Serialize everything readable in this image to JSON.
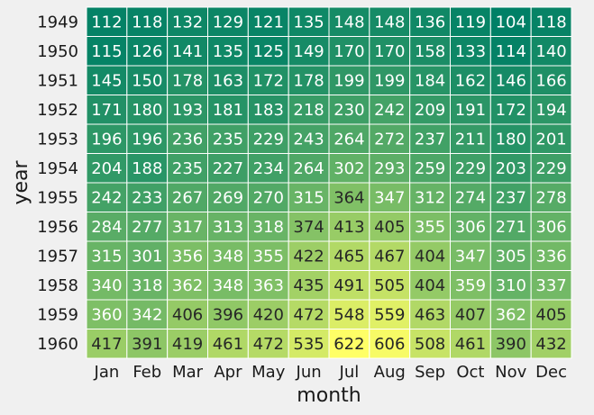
{
  "chart_data": {
    "type": "heatmap",
    "xlabel": "month",
    "ylabel": "year",
    "x_categories": [
      "Jan",
      "Feb",
      "Mar",
      "Apr",
      "May",
      "Jun",
      "Jul",
      "Aug",
      "Sep",
      "Oct",
      "Nov",
      "Dec"
    ],
    "y_categories": [
      "1949",
      "1950",
      "1951",
      "1952",
      "1953",
      "1954",
      "1955",
      "1956",
      "1957",
      "1958",
      "1959",
      "1960"
    ],
    "values": [
      [
        112,
        118,
        132,
        129,
        121,
        135,
        148,
        148,
        136,
        119,
        104,
        118
      ],
      [
        115,
        126,
        141,
        135,
        125,
        149,
        170,
        170,
        158,
        133,
        114,
        140
      ],
      [
        145,
        150,
        178,
        163,
        172,
        178,
        199,
        199,
        184,
        162,
        146,
        166
      ],
      [
        171,
        180,
        193,
        181,
        183,
        218,
        230,
        242,
        209,
        191,
        172,
        194
      ],
      [
        196,
        196,
        236,
        235,
        229,
        243,
        264,
        272,
        237,
        211,
        180,
        201
      ],
      [
        204,
        188,
        235,
        227,
        234,
        264,
        302,
        293,
        259,
        229,
        203,
        229
      ],
      [
        242,
        233,
        267,
        269,
        270,
        315,
        364,
        347,
        312,
        274,
        237,
        278
      ],
      [
        284,
        277,
        317,
        313,
        318,
        374,
        413,
        405,
        355,
        306,
        271,
        306
      ],
      [
        315,
        301,
        356,
        348,
        355,
        422,
        465,
        467,
        404,
        347,
        305,
        336
      ],
      [
        340,
        318,
        362,
        348,
        363,
        435,
        491,
        505,
        404,
        359,
        310,
        337
      ],
      [
        360,
        342,
        406,
        396,
        420,
        472,
        548,
        559,
        463,
        407,
        362,
        405
      ],
      [
        417,
        391,
        419,
        461,
        472,
        535,
        622,
        606,
        508,
        461,
        390,
        432
      ]
    ],
    "value_range": [
      104,
      622
    ],
    "colormap": "summer",
    "colormap_start": "#008066",
    "colormap_end": "#ffff66",
    "annotated": true,
    "grid": false,
    "legend": "none"
  }
}
